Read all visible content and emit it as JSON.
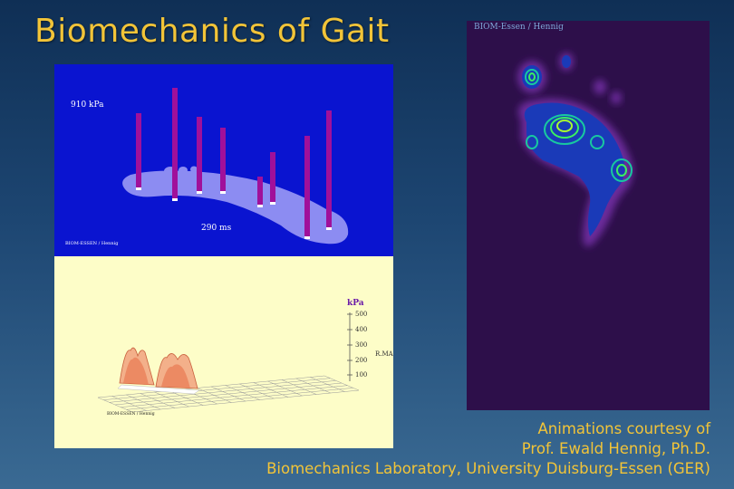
{
  "slide": {
    "title": "Biomechanics of Gait"
  },
  "bar_panel": {
    "peak_pressure": "910 kPa",
    "time_label": "290 ms",
    "watermark": "BIOM-ESSEN / Hennig"
  },
  "surface_panel": {
    "unit": "kPa",
    "ticks": [
      "500",
      "400",
      "300",
      "200",
      "100"
    ],
    "side_label": "R.MA",
    "watermark": "BIOM-ESSEN / Hennig"
  },
  "heatmap_panel": {
    "watermark": "BIOM-Essen / Hennig"
  },
  "credits": {
    "line1": "Animations courtesy of",
    "line2": "Prof. Ewald Hennig, Ph.D.",
    "line3": "Biomechanics Laboratory, University Duisburg-Essen (GER)"
  },
  "colors": {
    "title": "#f2c438",
    "bar_bg": "#0a14d0",
    "footprint": "#8c8cf2",
    "bar": "#a0109a",
    "surface_bg": "#fdfdc8",
    "heatmap_bg": "#2d0f4a"
  }
}
